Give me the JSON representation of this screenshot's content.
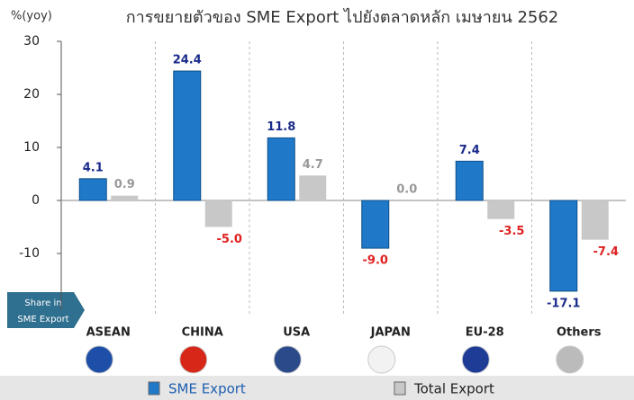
{
  "chart_data": {
    "type": "bar",
    "title": "การขยายตัวของ SME Export ไปยังตลาดหลัก เมษายน 2562",
    "y_label": "%(yoy)",
    "annotations": [
      "Share in",
      "SME Export"
    ],
    "categories": [
      "ASEAN",
      "CHINA",
      "USA",
      "JAPAN",
      "EU-28",
      "Others"
    ],
    "series": [
      {
        "name": "SME Export",
        "color": "#1f78c8",
        "values": [
          4.1,
          24.4,
          11.8,
          -9.0,
          7.4,
          -17.1
        ],
        "value_labels": [
          "4.1",
          "24.4",
          "11.8",
          "-9.0",
          "7.4",
          "-17.1"
        ]
      },
      {
        "name": "Total Export",
        "color": "#c8c8c8",
        "values": [
          0.9,
          -5.0,
          4.7,
          0.0,
          -3.5,
          -7.4
        ],
        "value_labels": [
          "0.9",
          "-5.0",
          "4.7",
          "0.0",
          "-3.5",
          "-7.4"
        ]
      }
    ],
    "ylim": [
      -20,
      30
    ],
    "yticks": [
      -10,
      0,
      10,
      20,
      30
    ],
    "grid": false
  }
}
